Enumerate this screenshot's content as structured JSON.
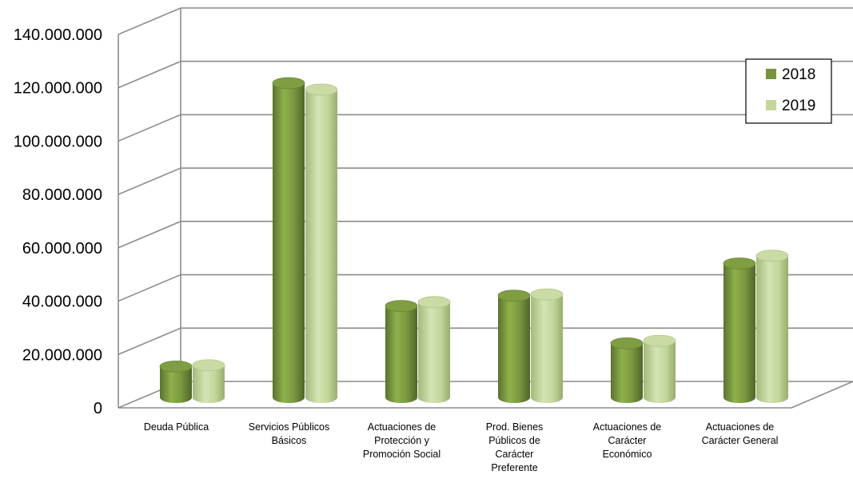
{
  "chart_data": {
    "type": "bar",
    "style": "3d-cylinder",
    "categories": [
      [
        "Deuda Pública"
      ],
      [
        "Servicios Públicos",
        "Básicos"
      ],
      [
        "Actuaciones de",
        "Protección y",
        "Promoción Social"
      ],
      [
        "Prod. Bienes",
        "Públicos de",
        "Carácter",
        "Preferente"
      ],
      [
        "Actuaciones de",
        "Carácter",
        "Económico"
      ],
      [
        "Actuaciones de",
        "Carácter General"
      ]
    ],
    "series": [
      {
        "name": "2018",
        "color": "#77933c",
        "values": [
          12000000,
          122000000,
          35500000,
          39500000,
          21000000,
          52000000
        ]
      },
      {
        "name": "2019",
        "color": "#c3d69b",
        "values": [
          12500000,
          119500000,
          37000000,
          40000000,
          22000000,
          55000000
        ]
      }
    ],
    "ylim": [
      0,
      140000000
    ],
    "yticks": [
      0,
      20000000,
      40000000,
      60000000,
      80000000,
      100000000,
      120000000,
      140000000
    ],
    "ytick_labels": [
      "0",
      "20.000.000",
      "40.000.000",
      "60.000.000",
      "80.000.000",
      "100.000.000",
      "120.000.000",
      "140.000.000"
    ],
    "grid": true,
    "legend_position": "top-right",
    "title": "",
    "xlabel": "",
    "ylabel": ""
  }
}
